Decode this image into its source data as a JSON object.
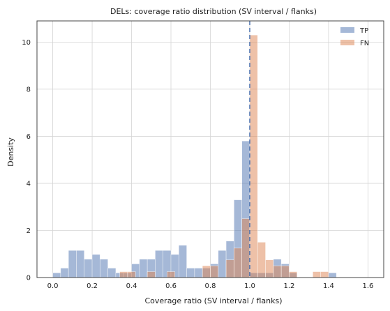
{
  "chart_data": {
    "type": "bar",
    "title": "DELs: coverage ratio distribution (SV interval / flanks)",
    "xlabel": "Coverage ratio (SV interval / flanks)",
    "ylabel": "Density",
    "xlim": [
      -0.08,
      1.68
    ],
    "ylim": [
      0,
      10.9
    ],
    "xticks": [
      "0.0",
      "0.2",
      "0.4",
      "0.6",
      "0.8",
      "1.0",
      "1.2",
      "1.4",
      "1.6"
    ],
    "yticks": [
      "0",
      "2",
      "4",
      "6",
      "8",
      "10"
    ],
    "grid": true,
    "legend_position": "top-right",
    "reference_line": {
      "x": 1.0,
      "style": "dashed",
      "color": "#4c72b0"
    },
    "series": [
      {
        "name": "TP",
        "color": "#4c72b0",
        "opacity": 0.5,
        "bins": [
          [
            0.0,
            0.04,
            0.2
          ],
          [
            0.04,
            0.08,
            0.4
          ],
          [
            0.08,
            0.12,
            1.15
          ],
          [
            0.12,
            0.16,
            1.15
          ],
          [
            0.16,
            0.2,
            0.78
          ],
          [
            0.2,
            0.24,
            0.98
          ],
          [
            0.24,
            0.28,
            0.78
          ],
          [
            0.28,
            0.32,
            0.4
          ],
          [
            0.32,
            0.36,
            0.2
          ],
          [
            0.36,
            0.4,
            0.2
          ],
          [
            0.4,
            0.44,
            0.58
          ],
          [
            0.44,
            0.48,
            0.78
          ],
          [
            0.48,
            0.52,
            0.78
          ],
          [
            0.52,
            0.56,
            1.15
          ],
          [
            0.56,
            0.6,
            1.15
          ],
          [
            0.6,
            0.64,
            0.98
          ],
          [
            0.64,
            0.68,
            1.37
          ],
          [
            0.68,
            0.72,
            0.4
          ],
          [
            0.72,
            0.76,
            0.4
          ],
          [
            0.76,
            0.8,
            0.4
          ],
          [
            0.8,
            0.84,
            0.58
          ],
          [
            0.84,
            0.88,
            1.15
          ],
          [
            0.88,
            0.92,
            1.55
          ],
          [
            0.92,
            0.96,
            3.3
          ],
          [
            0.96,
            1.0,
            5.8
          ],
          [
            1.0,
            1.04,
            0.2
          ],
          [
            1.04,
            1.08,
            0.2
          ],
          [
            1.08,
            1.12,
            0.2
          ],
          [
            1.12,
            1.16,
            0.78
          ],
          [
            1.16,
            1.2,
            0.58
          ],
          [
            1.2,
            1.24,
            0.2
          ],
          [
            1.4,
            1.44,
            0.2
          ]
        ]
      },
      {
        "name": "FN",
        "color": "#dd8452",
        "opacity": 0.5,
        "bins": [
          [
            0.34,
            0.38,
            0.25
          ],
          [
            0.38,
            0.42,
            0.25
          ],
          [
            0.48,
            0.52,
            0.25
          ],
          [
            0.58,
            0.62,
            0.25
          ],
          [
            0.76,
            0.8,
            0.5
          ],
          [
            0.8,
            0.84,
            0.5
          ],
          [
            0.88,
            0.92,
            0.75
          ],
          [
            0.92,
            0.96,
            1.25
          ],
          [
            0.96,
            1.0,
            2.5
          ],
          [
            1.0,
            1.04,
            10.3
          ],
          [
            1.04,
            1.08,
            1.5
          ],
          [
            1.08,
            1.12,
            0.75
          ],
          [
            1.12,
            1.16,
            0.5
          ],
          [
            1.16,
            1.2,
            0.5
          ],
          [
            1.2,
            1.24,
            0.25
          ],
          [
            1.32,
            1.36,
            0.25
          ],
          [
            1.36,
            1.4,
            0.25
          ]
        ]
      }
    ]
  }
}
